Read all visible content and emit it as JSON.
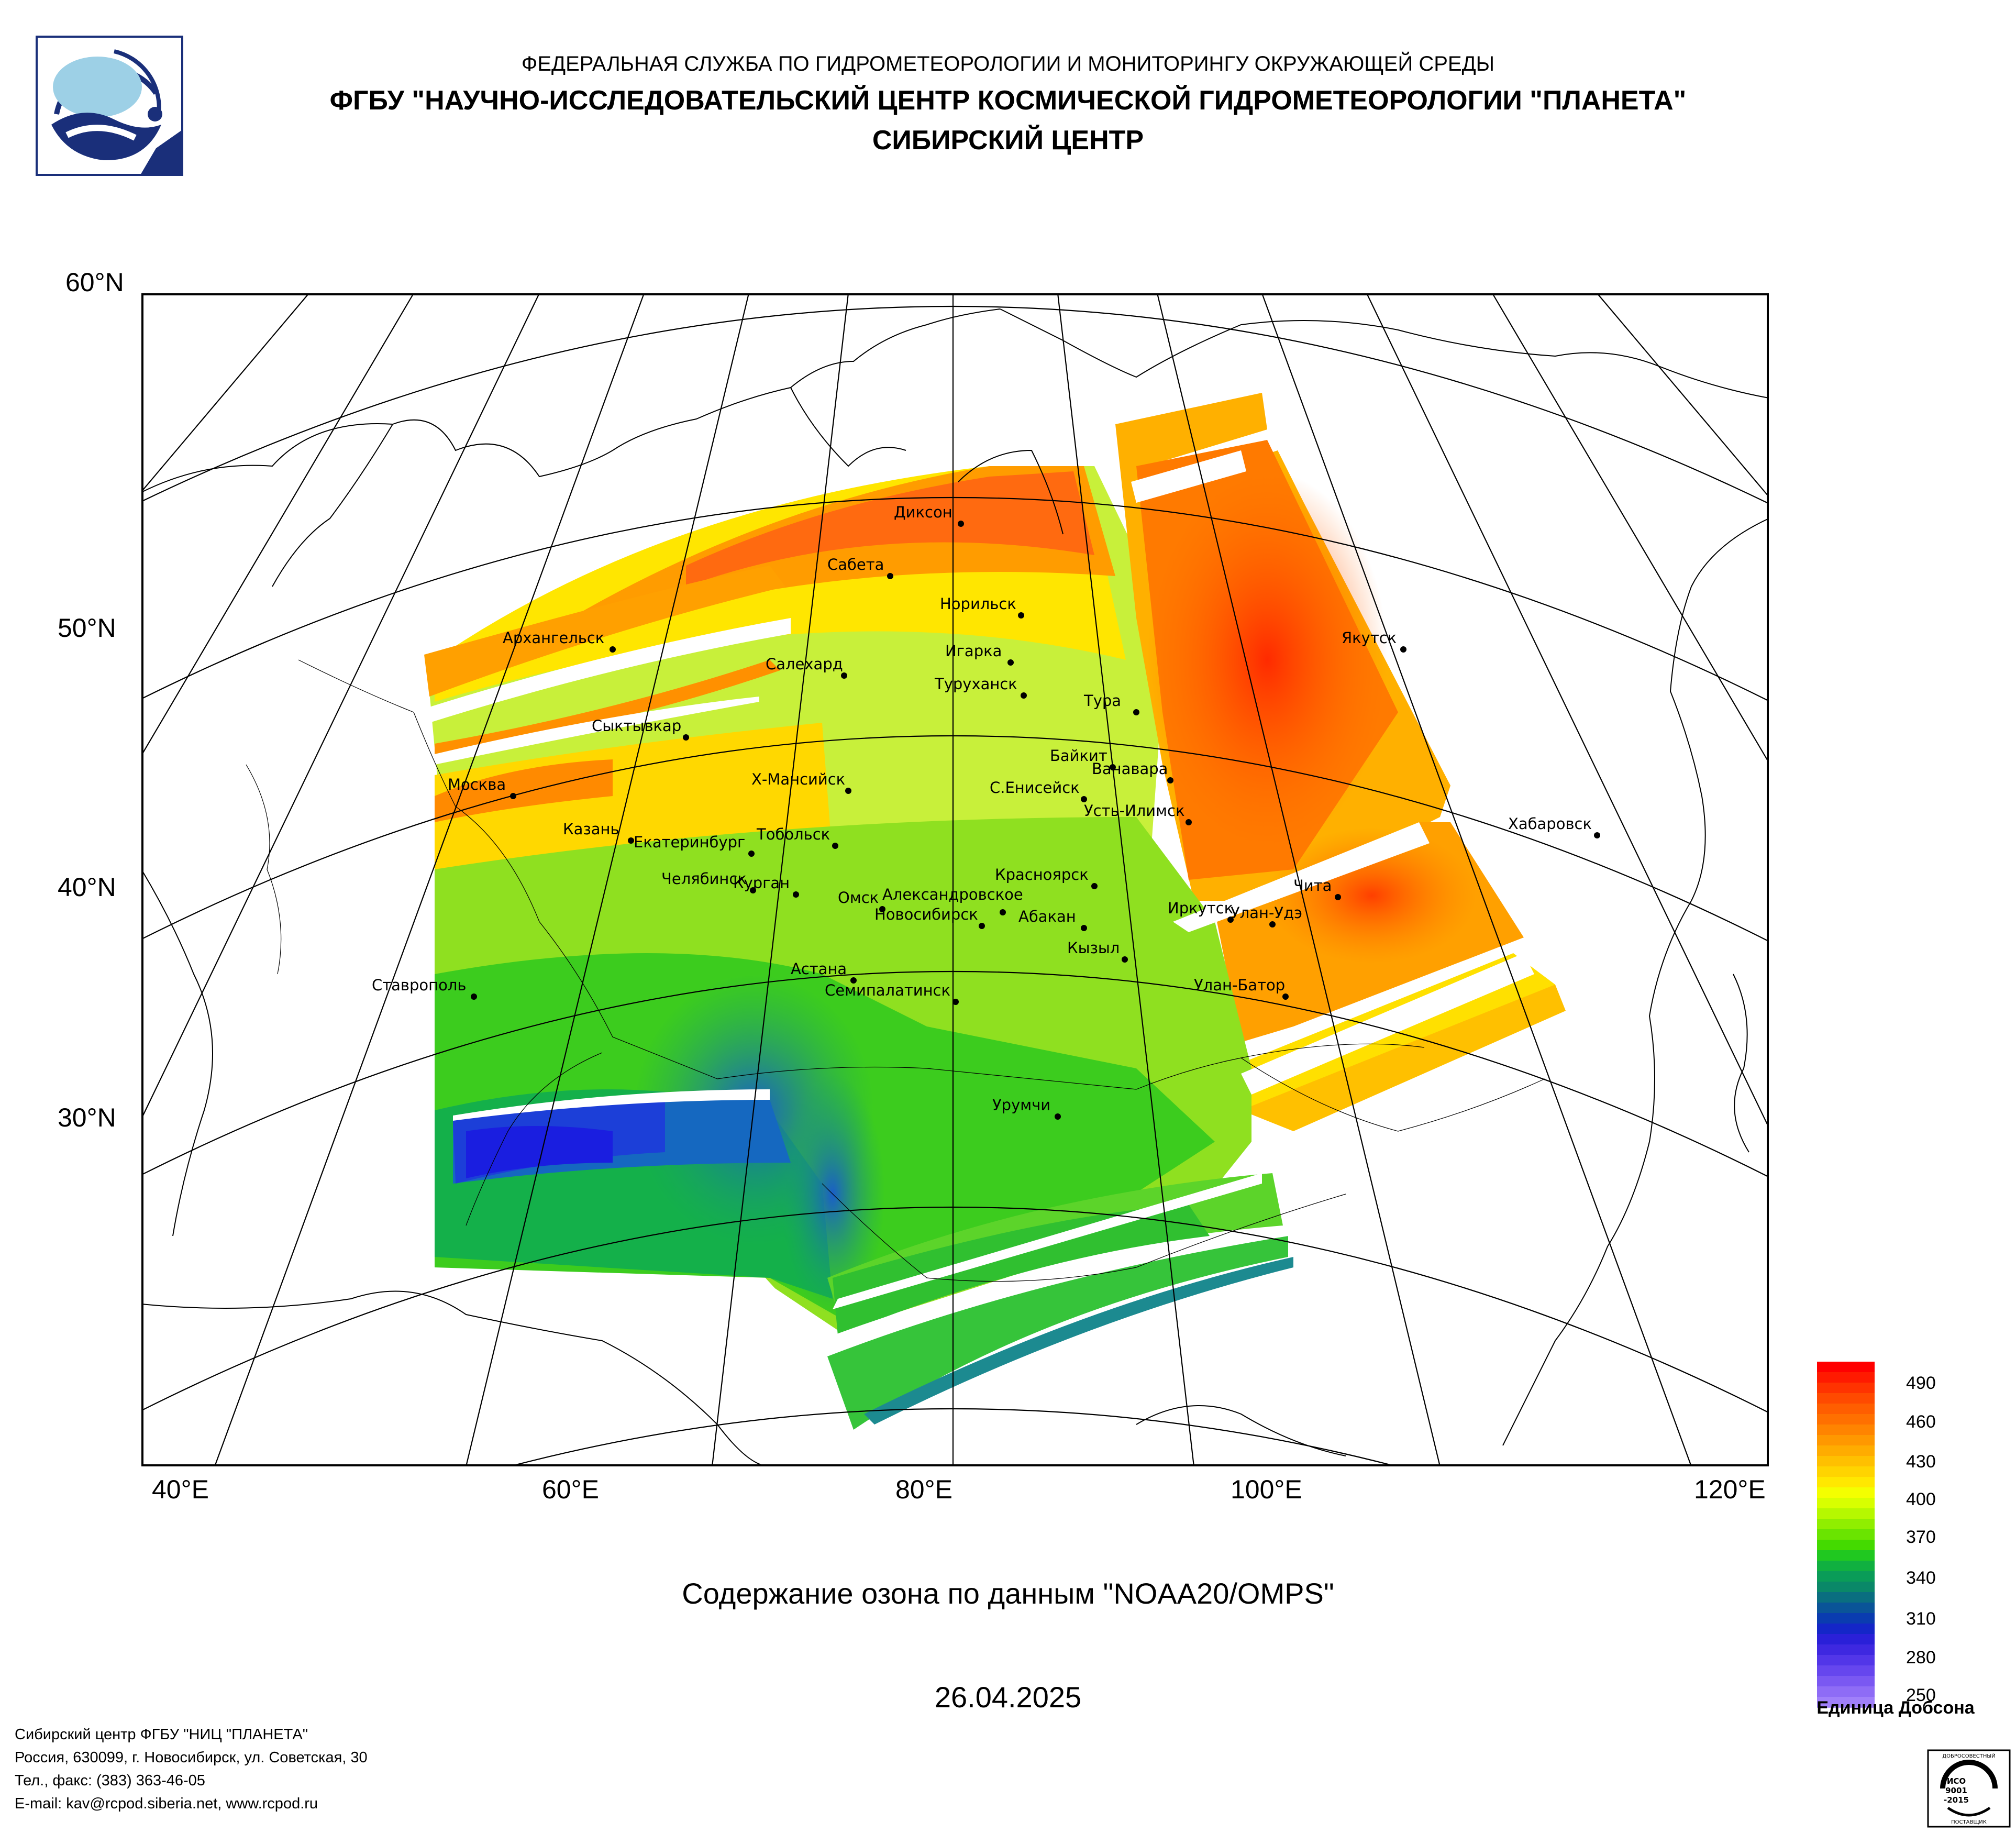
{
  "header": {
    "agency": "ФЕДЕРАЛЬНАЯ СЛУЖБА ПО ГИДРОМЕТЕОРОЛОГИИ И МОНИТОРИНГУ ОКРУЖАЮЩЕЙ СРЕДЫ",
    "center": "ФГБУ \"НАУЧНО-ИССЛЕДОВАТЕЛЬСКИЙ ЦЕНТР КОСМИЧЕСКОЙ ГИДРОМЕТЕОРОЛОГИИ \"ПЛАНЕТА\"",
    "subcenter": "СИБИРСКИЙ ЦЕНТР"
  },
  "map": {
    "lat_labels": [
      "60°N",
      "50°N",
      "40°N",
      "30°N"
    ],
    "lon_labels": [
      "40°E",
      "60°E",
      "80°E",
      "100°E",
      "120°E"
    ],
    "cities": [
      "Диксон",
      "Сабета",
      "Норильск",
      "Архангельск",
      "Якутск",
      "Салехард",
      "Игарка",
      "Туруханск",
      "Тура",
      "Сыктывкар",
      "Байкит",
      "Ванавара",
      "Москва",
      "Х-Мансийск",
      "С.Енисейск",
      "Усть-Илимск",
      "Хабаровск",
      "Казань",
      "Тобольск",
      "Екатеринбург",
      "Челябинск",
      "Красноярск",
      "Курган",
      "Александровское",
      "Чита",
      "Омск",
      "Улан-Удэ",
      "Новосибирск",
      "Абакан",
      "Иркутск",
      "Кызыл",
      "Астана",
      "Ставрополь",
      "Улан-Батор",
      "Семипалатинск",
      "Урумчи"
    ]
  },
  "caption": "Содержание озона по данным \"NOAA20/OMPS\"",
  "date": "26.04.2025",
  "legend": {
    "ticks": [
      "490",
      "460",
      "430",
      "400",
      "370",
      "340",
      "310",
      "280",
      "250"
    ],
    "unit": "Единица Добсона"
  },
  "footer": {
    "line1": "Сибирский центр ФГБУ \"НИЦ \"ПЛАНЕТА\"",
    "line2": "Россия, 630099, г. Новосибирск, ул. Советская, 30",
    "line3": "Тел., факс: (383) 363-46-05",
    "line4": "E-mail: kav@rcpod.siberia.net, www.rcpod.ru"
  },
  "badge": {
    "top": "ДОБРОСОВЕСТНЫЙ",
    "l1": "ИСО",
    "l2": "9001",
    "l3": "-2015",
    "bottom": "ПОСТАВЩИК"
  },
  "colors": {
    "navy": "#1a2f7a",
    "light_blue": "#9dd0e6"
  }
}
